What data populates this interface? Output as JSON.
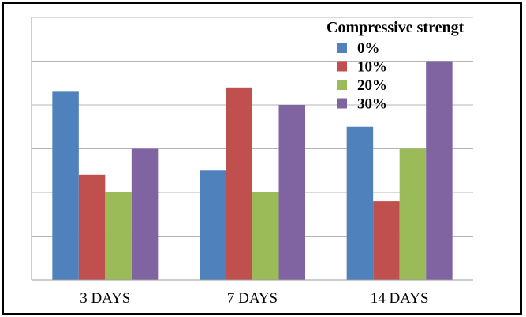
{
  "chart_data": {
    "type": "bar",
    "title": "",
    "xlabel": "",
    "ylabel": "",
    "categories": [
      "3 DAYS",
      "7 DAYS",
      "14 DAYS"
    ],
    "ylim": [
      0,
      6
    ],
    "grid": true,
    "legend": {
      "title": "Compressive strengt",
      "placement": "top-right"
    },
    "series": [
      {
        "name": "0%",
        "color": "#4F81BD",
        "values": [
          4.3,
          2.5,
          3.5
        ]
      },
      {
        "name": "10%",
        "color": "#C0504D",
        "values": [
          2.4,
          4.4,
          1.8
        ]
      },
      {
        "name": "20%",
        "color": "#9BBB59",
        "values": [
          2.0,
          2.0,
          3.0
        ]
      },
      {
        "name": "30%",
        "color": "#8064A2",
        "values": [
          3.0,
          4.0,
          5.0
        ]
      }
    ]
  }
}
